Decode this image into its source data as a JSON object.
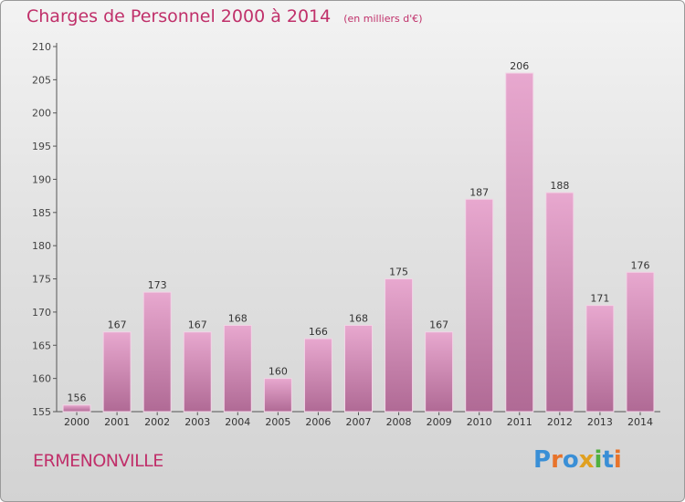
{
  "title": "Charges de Personnel 2000 à 2014",
  "subtitle": "(en milliers d'€)",
  "commune": "ERMENONVILLE",
  "logo": {
    "letters": [
      "P",
      "r",
      "o",
      "x",
      "i",
      "t",
      "i"
    ],
    "colors": [
      "#3a8fd6",
      "#e8732a",
      "#3a8fd6",
      "#e0a020",
      "#50b040",
      "#3a8fd6",
      "#e8732a"
    ]
  },
  "colors": {
    "bar_top": "#e8a8cf",
    "bar_bottom": "#b06a95",
    "title": "#c0306a"
  },
  "chart_data": {
    "type": "bar",
    "categories": [
      "2000",
      "2001",
      "2002",
      "2003",
      "2004",
      "2005",
      "2006",
      "2007",
      "2008",
      "2009",
      "2010",
      "2011",
      "2012",
      "2013",
      "2014"
    ],
    "values": [
      156,
      167,
      173,
      167,
      168,
      160,
      166,
      168,
      175,
      167,
      187,
      206,
      188,
      171,
      176
    ],
    "ylim": [
      155,
      210
    ],
    "yticks": [
      155,
      160,
      165,
      170,
      175,
      180,
      185,
      190,
      195,
      200,
      205,
      210
    ],
    "grid": false,
    "legend": false
  }
}
